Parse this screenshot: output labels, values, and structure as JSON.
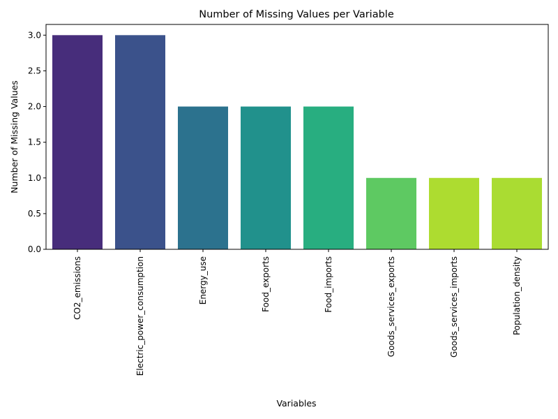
{
  "chart_data": {
    "type": "bar",
    "title": "Number of Missing Values per Variable",
    "xlabel": "Variables",
    "ylabel": "Number of Missing Values",
    "categories": [
      "CO2_emissions",
      "Electric_power_consumption",
      "Energy_use",
      "Food_exports",
      "Food_imports",
      "Goods_services_exports",
      "Goods_services_imports",
      "Population_density"
    ],
    "values": [
      3,
      3,
      2,
      2,
      2,
      1,
      1,
      1
    ],
    "colors": [
      "#472d7b",
      "#3b528b",
      "#2c728e",
      "#21918c",
      "#28ae80",
      "#5ec962",
      "#addc30",
      "#aadc32"
    ],
    "ylim": [
      0,
      3.15
    ],
    "yticks": [
      "0.0",
      "0.5",
      "1.0",
      "1.5",
      "2.0",
      "2.5",
      "3.0"
    ],
    "grid": false,
    "legend": "none"
  }
}
